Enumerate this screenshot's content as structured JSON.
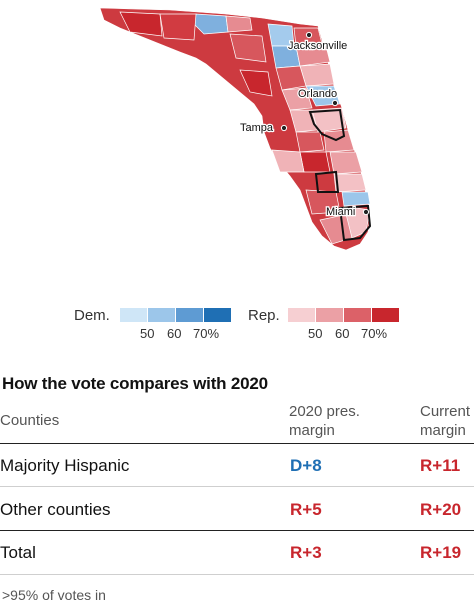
{
  "map": {
    "cities": [
      {
        "name": "Jacksonville"
      },
      {
        "name": "Orlando"
      },
      {
        "name": "Tampa"
      },
      {
        "name": "Miami"
      }
    ]
  },
  "legend": {
    "dem_label": "Dem.",
    "rep_label": "Rep.",
    "dem_colors": [
      "#cfe6f7",
      "#9cc6ea",
      "#5e9bd3",
      "#1f6fb4"
    ],
    "rep_colors": [
      "#f6cfd2",
      "#eba0a5",
      "#dc6168",
      "#c8262d"
    ],
    "dem_ticks": [
      "50",
      "60",
      "70%"
    ],
    "rep_ticks": [
      "50",
      "60",
      "70%"
    ]
  },
  "table": {
    "title": "How the vote compares with 2020",
    "col_counties": "Counties",
    "col_2020_line1": "2020 pres.",
    "col_2020_line2": "margin",
    "col_current_line1": "Current",
    "col_current_line2": "margin",
    "rows": [
      {
        "label": "Majority Hispanic",
        "pres2020": "D+8",
        "pres2020_party": "dem",
        "current": "R+11",
        "current_party": "rep"
      },
      {
        "label": "Other counties",
        "pres2020": "R+5",
        "pres2020_party": "rep",
        "current": "R+20",
        "current_party": "rep"
      },
      {
        "label": "Total",
        "pres2020": "R+3",
        "pres2020_party": "rep",
        "current": "R+19",
        "current_party": "rep"
      }
    ],
    "footnote": ">95% of votes in"
  },
  "colors": {
    "dem": "#1f6fb4",
    "rep": "#c8262d"
  }
}
